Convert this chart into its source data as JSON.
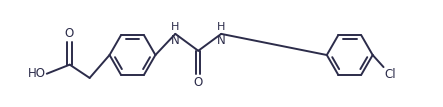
{
  "bg_color": "#ffffff",
  "line_color": "#2c2c4a",
  "line_width": 1.4,
  "font_size": 8.5,
  "figsize": [
    4.43,
    1.07
  ],
  "dpi": 100,
  "r1x": 1.9,
  "r1y": 1.0,
  "r2x": 5.5,
  "r2y": 1.0,
  "ring_r": 0.38,
  "xlim": [
    0.05,
    6.7
  ],
  "ylim": [
    0.15,
    1.9
  ]
}
